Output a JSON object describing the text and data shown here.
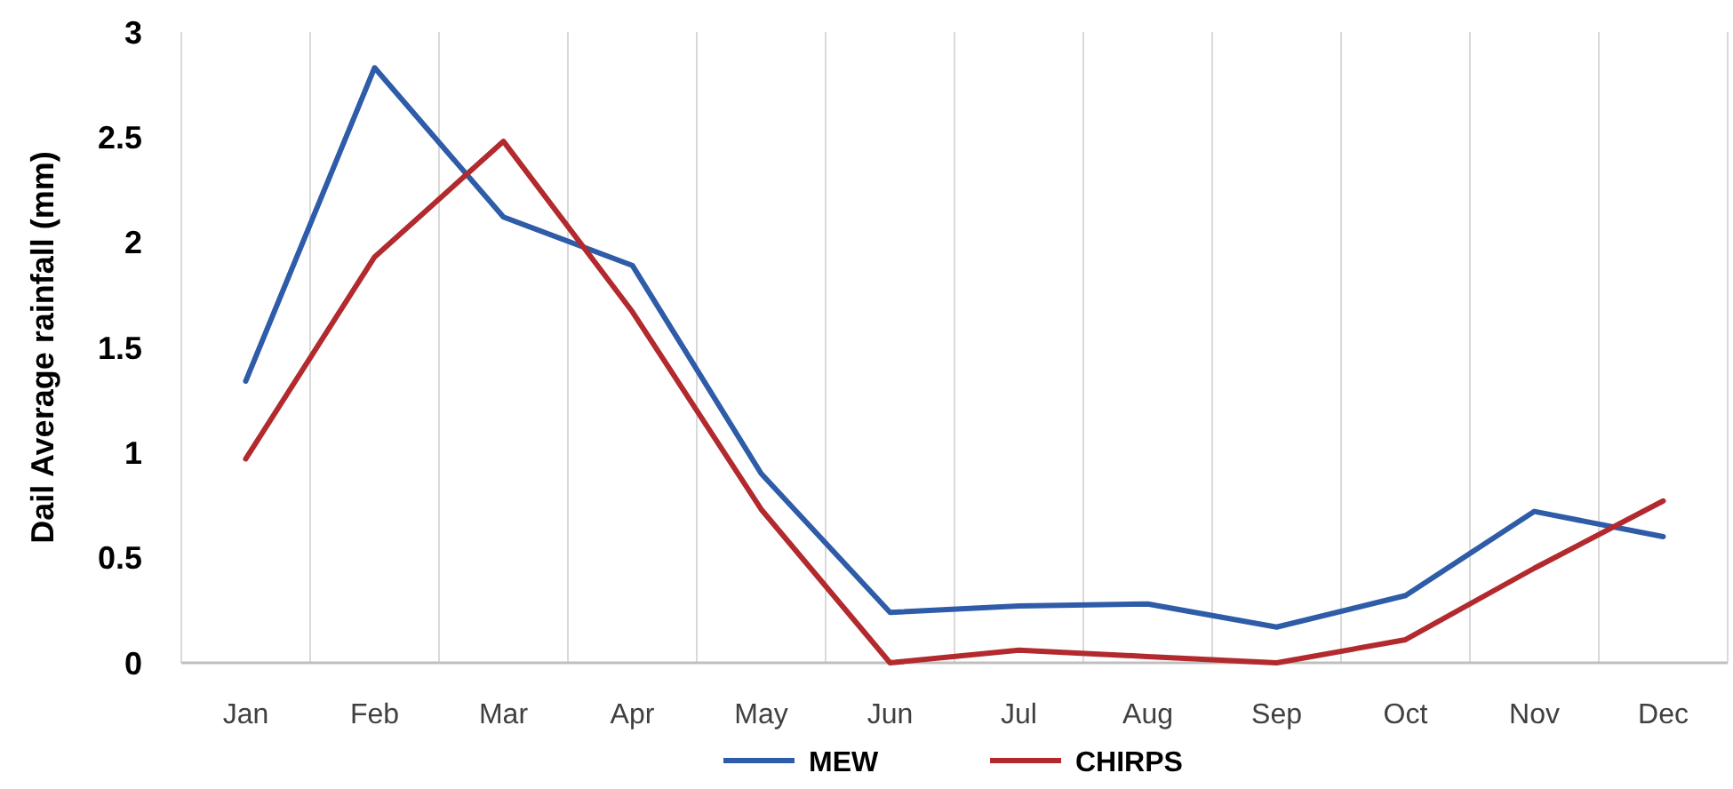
{
  "chart_data": {
    "type": "line",
    "ylabel": "Dail Average rainfall (mm)",
    "categories": [
      "Jan",
      "Feb",
      "Mar",
      "Apr",
      "May",
      "Jun",
      "Jul",
      "Aug",
      "Sep",
      "Oct",
      "Nov",
      "Dec"
    ],
    "series": [
      {
        "name": "MEW",
        "color": "#2e5ca8",
        "values": [
          1.34,
          2.83,
          2.12,
          1.89,
          0.9,
          0.24,
          0.27,
          0.28,
          0.17,
          0.32,
          0.72,
          0.6
        ]
      },
      {
        "name": "CHIRPS",
        "color": "#b22a2e",
        "values": [
          0.97,
          1.93,
          2.48,
          1.67,
          0.73,
          0,
          0.06,
          0.03,
          0,
          0.11,
          0.45,
          0.77
        ]
      }
    ],
    "ylim": [
      0,
      3
    ],
    "yticks": [
      0,
      0.5,
      1,
      1.5,
      2,
      2.5,
      3
    ],
    "grid": "x",
    "legend": "bottom",
    "marker": "none",
    "line_style": "solid"
  }
}
